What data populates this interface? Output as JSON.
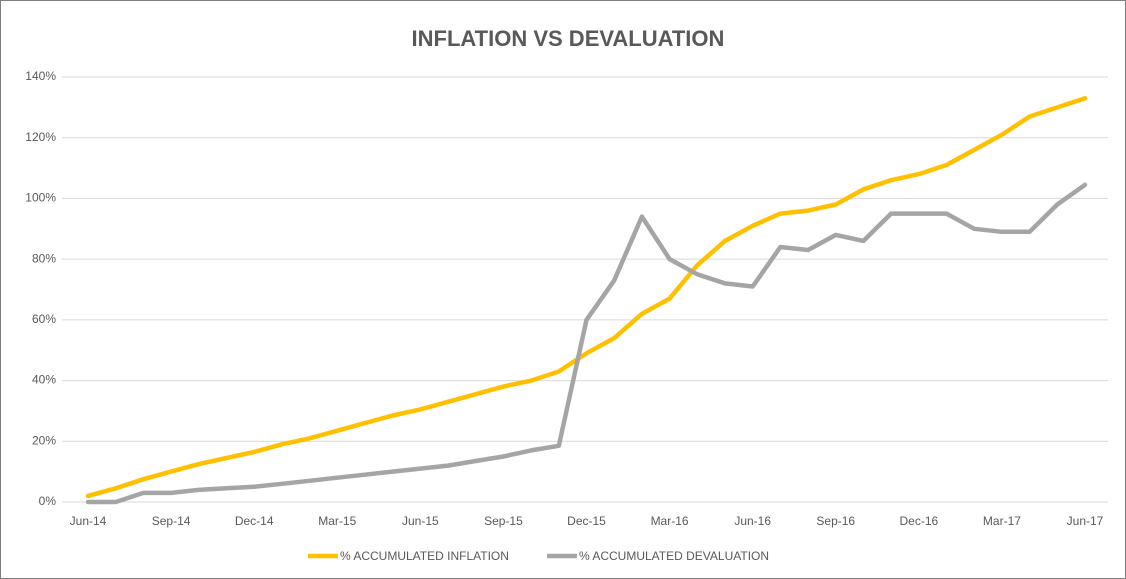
{
  "chart_data": {
    "type": "line",
    "title": "INFLATION VS DEVALUATION",
    "categories": [
      "Jun-14",
      null,
      null,
      "Sep-14",
      null,
      null,
      "Dec-14",
      null,
      null,
      "Mar-15",
      null,
      null,
      "Jun-15",
      null,
      null,
      "Sep-15",
      null,
      null,
      "Dec-15",
      null,
      null,
      "Mar-16",
      null,
      null,
      "Jun-16",
      null,
      null,
      "Sep-16",
      null,
      null,
      "Dec-16",
      null,
      null,
      "Mar-17",
      null,
      null,
      "Jun-17"
    ],
    "series": [
      {
        "name": "% ACCUMULATED INFLATION",
        "color": "#ffc000",
        "values": [
          2,
          4.5,
          7.5,
          10,
          12.5,
          14.5,
          16.5,
          19,
          21,
          23.5,
          26,
          28.5,
          30.5,
          33,
          35.5,
          38,
          40,
          43,
          49,
          54,
          62,
          67,
          78,
          86,
          91,
          95,
          96,
          98,
          103,
          106,
          108,
          111,
          116,
          121,
          127,
          130,
          133
        ]
      },
      {
        "name": "% ACCUMULATED DEVALUATION",
        "color": "#a5a5a5",
        "values": [
          0,
          0,
          3,
          3,
          4,
          4.5,
          5,
          6,
          7,
          8,
          9,
          10,
          11,
          12,
          13.5,
          15,
          17,
          18.5,
          60,
          73,
          94,
          80,
          75,
          72,
          71,
          84,
          83,
          88,
          86,
          95,
          95,
          95,
          90,
          89,
          89,
          98,
          104.5
        ]
      }
    ],
    "ylim": [
      0,
      140
    ],
    "yticks": [
      {
        "value": 0,
        "label": "0%"
      },
      {
        "value": 20,
        "label": "20%"
      },
      {
        "value": 40,
        "label": "40%"
      },
      {
        "value": 60,
        "label": "60%"
      },
      {
        "value": 80,
        "label": "80%"
      },
      {
        "value": 100,
        "label": "100%"
      },
      {
        "value": 120,
        "label": "120%"
      },
      {
        "value": 140,
        "label": "140%"
      }
    ],
    "grid": true,
    "legend": "bottom"
  }
}
